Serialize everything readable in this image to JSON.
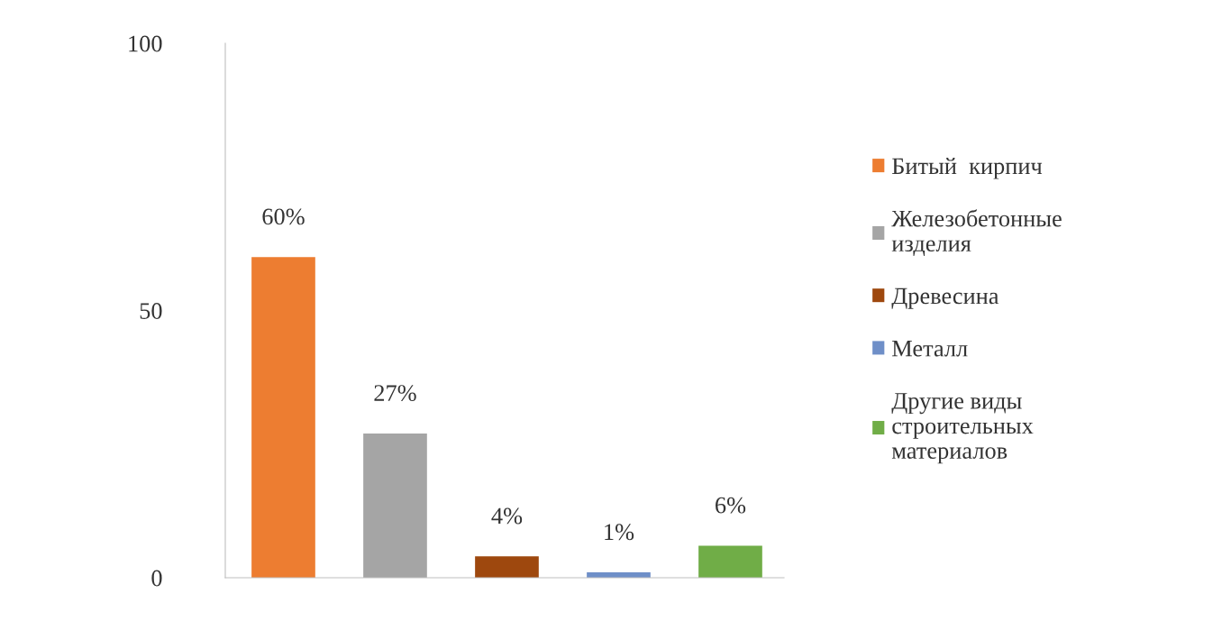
{
  "chart_data": {
    "type": "bar",
    "categories": [
      null,
      null,
      null,
      null,
      null
    ],
    "series": [
      {
        "name": "Битый  кирпич",
        "color": "#ed7d31",
        "values": [
          60,
          null,
          null,
          null,
          null
        ],
        "value_labels": [
          "60%",
          null,
          null,
          null,
          null
        ]
      },
      {
        "name": "Железобетонные\nизделия",
        "color": "#a5a5a5",
        "values": [
          null,
          27,
          null,
          null,
          null
        ],
        "value_labels": [
          null,
          "27%",
          null,
          null,
          null
        ]
      },
      {
        "name": "Древесина",
        "color": "#9e480e",
        "values": [
          null,
          null,
          4,
          null,
          null
        ],
        "value_labels": [
          null,
          null,
          "4%",
          null,
          null
        ]
      },
      {
        "name": "Металл",
        "color": "#6f8fc8",
        "values": [
          null,
          null,
          null,
          1,
          null
        ],
        "value_labels": [
          null,
          null,
          null,
          "1%",
          null
        ]
      },
      {
        "name": "Другие виды\nстроительных\nматериалов",
        "color": "#70ad47",
        "values": [
          null,
          null,
          null,
          null,
          6
        ],
        "value_labels": [
          null,
          null,
          null,
          null,
          "6%"
        ]
      }
    ],
    "ylim": [
      0,
      100
    ],
    "yticks": [
      0,
      50,
      100
    ],
    "grid": false,
    "legend": "right",
    "tick_labels": "y"
  }
}
